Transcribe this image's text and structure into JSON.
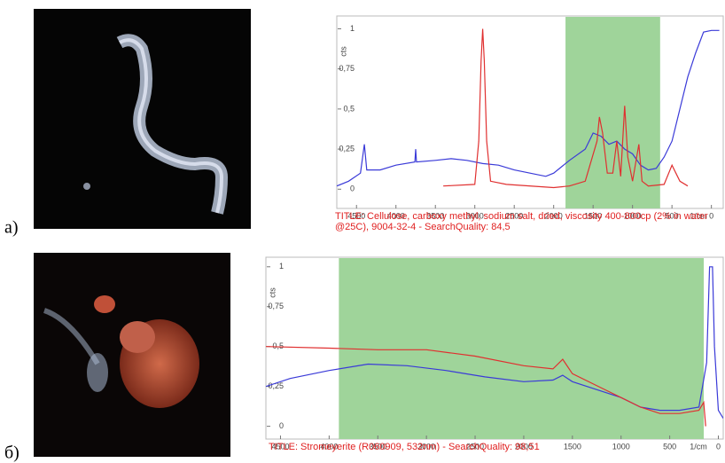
{
  "chart_data": [
    {
      "type": "line",
      "panel_label": "а)",
      "y_label": "cts",
      "x_label": "1/cm",
      "caption": "TITLE:  Cellulose, carboxy methyl, sodium salt, dried, viscosity 400-800cp (2% in water @25C), 9004-32-4 - SearchQuality: 84,5",
      "xlim": [
        4750,
        -150
      ],
      "ylim": [
        -0.12,
        1.08
      ],
      "xticks": [
        4500,
        4000,
        3500,
        3000,
        2500,
        2000,
        1500,
        1000,
        500,
        0
      ],
      "yticks": [
        0,
        {
          "value": 0.25,
          "label": "0,25"
        },
        {
          "value": 0.5,
          "label": "0,5"
        },
        {
          "value": 0.75,
          "label": "0,75"
        },
        1
      ],
      "highlight_range": [
        1850,
        650
      ],
      "highlight_color": "#9fd49a",
      "series": [
        {
          "color": "#3a3ad8",
          "x": [
            4750,
            4600,
            4450,
            4400,
            4370,
            4200,
            4000,
            3760,
            3750,
            3740,
            3500,
            3300,
            3100,
            2900,
            2700,
            2500,
            2300,
            2100,
            2000,
            1800,
            1600,
            1500,
            1400,
            1300,
            1200,
            1100,
            1000,
            900,
            800,
            700,
            600,
            500,
            400,
            300,
            200,
            100,
            0,
            -100
          ],
          "values": [
            0.02,
            0.05,
            0.1,
            0.28,
            0.12,
            0.12,
            0.15,
            0.17,
            0.25,
            0.17,
            0.18,
            0.19,
            0.18,
            0.16,
            0.15,
            0.12,
            0.1,
            0.08,
            0.1,
            0.18,
            0.25,
            0.35,
            0.33,
            0.28,
            0.3,
            0.25,
            0.22,
            0.15,
            0.12,
            0.13,
            0.2,
            0.3,
            0.5,
            0.7,
            0.85,
            0.98,
            0.99,
            0.99
          ]
        },
        {
          "color": "#e03030",
          "x": [
            3400,
            3000,
            2950,
            2920,
            2900,
            2880,
            2850,
            2800,
            2600,
            2000,
            1800,
            1600,
            1450,
            1420,
            1380,
            1320,
            1250,
            1200,
            1150,
            1100,
            1060,
            1000,
            920,
            880,
            800,
            600,
            500,
            450,
            400,
            300
          ],
          "values": [
            0.02,
            0.03,
            0.3,
            0.8,
            1,
            0.8,
            0.3,
            0.05,
            0.03,
            0.01,
            0.02,
            0.05,
            0.3,
            0.45,
            0.35,
            0.1,
            0.1,
            0.3,
            0.08,
            0.52,
            0.2,
            0.05,
            0.28,
            0.05,
            0.02,
            0.03,
            0.15,
            0.1,
            0.05,
            0.02
          ]
        }
      ]
    },
    {
      "type": "line",
      "panel_label": "б)",
      "y_label": "cts",
      "x_label": "1/cm",
      "caption": "TITLE:  Stromeyerite (R060909, 532nm) - SearchQuality: 98,51",
      "xlim": [
        4650,
        -50
      ],
      "ylim": [
        -0.08,
        1.06
      ],
      "xticks": [
        4500,
        4000,
        3500,
        3000,
        2500,
        2000,
        1500,
        1000,
        500,
        0
      ],
      "yticks": [
        0,
        {
          "value": 0.25,
          "label": "0,25"
        },
        {
          "value": 0.5,
          "label": "0,5"
        },
        {
          "value": 0.75,
          "label": "0,75"
        },
        1
      ],
      "highlight_range": [
        3900,
        150
      ],
      "highlight_color": "#9fd49a",
      "series": [
        {
          "color": "#3a3ad8",
          "x": [
            4650,
            4400,
            4000,
            3600,
            3200,
            2800,
            2400,
            2000,
            1700,
            1600,
            1500,
            1200,
            1000,
            800,
            600,
            400,
            200,
            120,
            90,
            60,
            40,
            0,
            -50
          ],
          "values": [
            0.25,
            0.3,
            0.35,
            0.39,
            0.38,
            0.35,
            0.31,
            0.28,
            0.29,
            0.32,
            0.28,
            0.22,
            0.18,
            0.12,
            0.1,
            0.1,
            0.12,
            0.4,
            1,
            1,
            0.5,
            0.1,
            0.05
          ]
        },
        {
          "color": "#e03030",
          "x": [
            4650,
            4000,
            3500,
            3000,
            2500,
            2000,
            1700,
            1600,
            1500,
            1200,
            1000,
            800,
            600,
            400,
            200,
            150,
            130
          ],
          "values": [
            0.5,
            0.49,
            0.48,
            0.48,
            0.44,
            0.38,
            0.36,
            0.42,
            0.33,
            0.24,
            0.18,
            0.12,
            0.08,
            0.08,
            0.1,
            0.15,
            0
          ]
        }
      ]
    }
  ]
}
